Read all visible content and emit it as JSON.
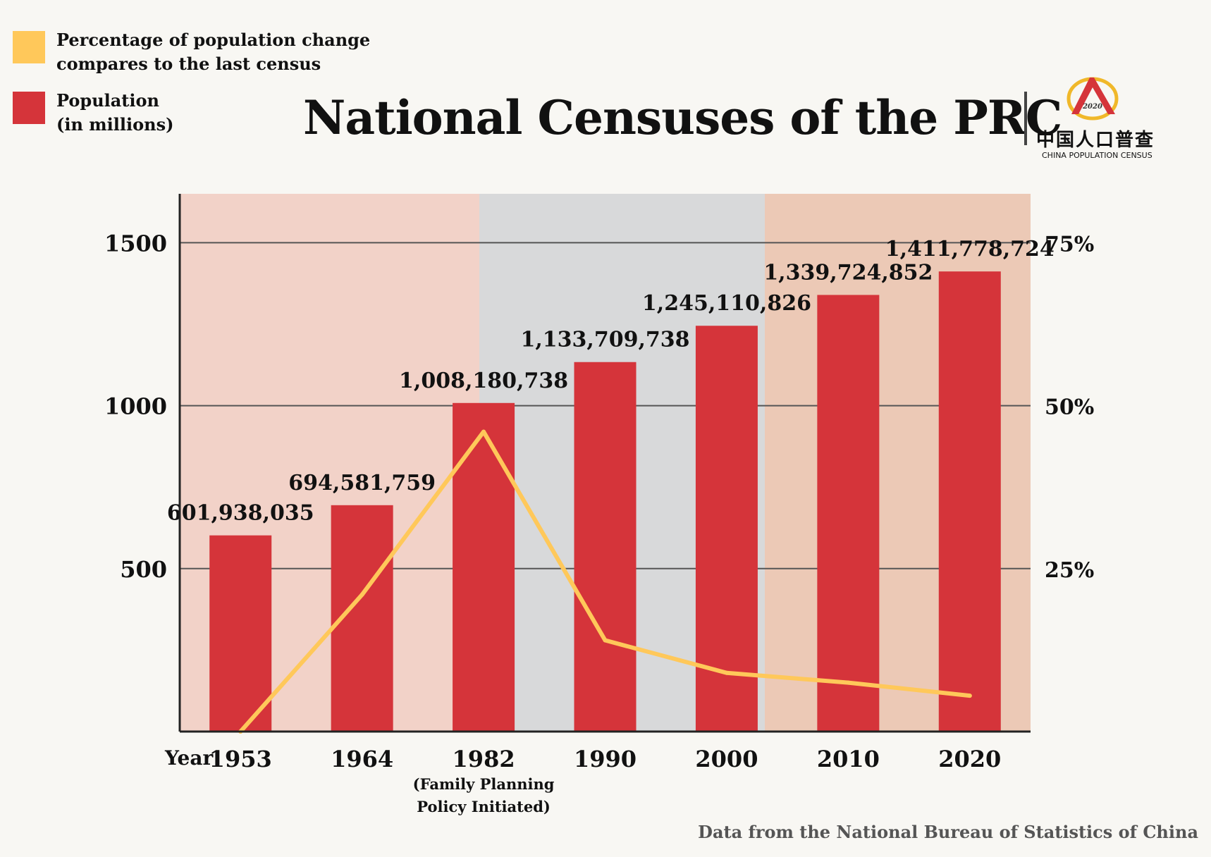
{
  "title": "National Censuses of the PRC",
  "legend": [
    {
      "label": "Percentage of population change\ncompares to the last census",
      "color": "#ffc85a"
    },
    {
      "label": "Population\n (in millions)",
      "color": "#d5343a"
    }
  ],
  "logo": {
    "year": "2020",
    "chinese": "中国人口普查",
    "english": "CHINA POPULATION CENSUS"
  },
  "source": "Data from the National Bureau of Statistics of China",
  "chart_data": {
    "type": "bar",
    "categories": [
      "1953",
      "1964",
      "1982",
      "1990",
      "2000",
      "2010",
      "2020"
    ],
    "category_notes": [
      "",
      "",
      "(Family Planning\nPolicy Initiated)",
      "",
      "",
      "",
      ""
    ],
    "x_axis_label": "Year",
    "series": [
      {
        "name": "Population\n (in millions)",
        "type": "bar",
        "axis": "left",
        "color": "#d5343a",
        "values": [
          601.938035,
          694.581759,
          1008.180738,
          1133.709738,
          1245.110826,
          1339.724852,
          1411.778724
        ],
        "data_labels": [
          "601,938,035",
          "694,581,759",
          "1,008,180,738",
          "1,133,709,738",
          "1,245,110,826",
          "1,339,724,852",
          "1,411,778,724"
        ]
      },
      {
        "name": "Percentage of population change\ncompares to the last census",
        "type": "line",
        "axis": "right",
        "color": "#ffc85a",
        "values": [
          0,
          21,
          46,
          14,
          9,
          7.5,
          5.5
        ]
      }
    ],
    "y_left": {
      "ticks": [
        500,
        1000,
        1500
      ],
      "tick_labels": [
        "500",
        "1000",
        "1500"
      ],
      "min": 0,
      "max": 1650
    },
    "y_right": {
      "ticks": [
        25,
        50,
        75
      ],
      "tick_labels": [
        "25%",
        "50%",
        "75%"
      ],
      "min": 0,
      "max": 82.5
    },
    "grid": true
  }
}
